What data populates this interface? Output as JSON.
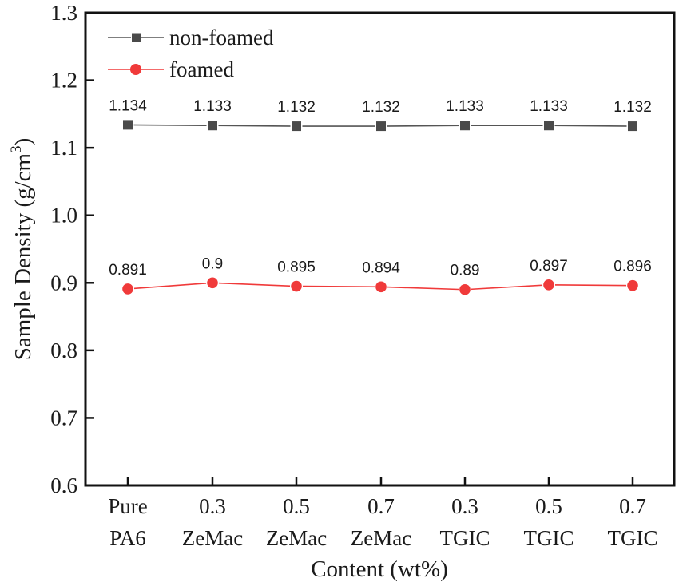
{
  "chart_data": {
    "type": "line",
    "title": "",
    "xlabel": "Content (wt%)",
    "ylabel": "Sample Density (g/cm³)",
    "ylabel_parts": {
      "main": "Sample Density (g/cm",
      "sup": "3",
      "end": ")"
    },
    "ylim": [
      0.6,
      1.3
    ],
    "yticks": [
      "0.6",
      "0.7",
      "0.8",
      "0.9",
      "1.0",
      "1.1",
      "1.2",
      "1.3"
    ],
    "categories": [
      [
        "Pure",
        "PA6"
      ],
      [
        "0.3",
        "ZeMac"
      ],
      [
        "0.5",
        "ZeMac"
      ],
      [
        "0.7",
        "ZeMac"
      ],
      [
        "0.3",
        "TGIC"
      ],
      [
        "0.5",
        "TGIC"
      ],
      [
        "0.7",
        "TGIC"
      ]
    ],
    "series": [
      {
        "name": "non-foamed",
        "marker": "square",
        "color": "#4a4a4a",
        "line_color": "#555555",
        "values": [
          1.134,
          1.133,
          1.132,
          1.132,
          1.133,
          1.133,
          1.132
        ],
        "labels": [
          "1.134",
          "1.133",
          "1.132",
          "1.132",
          "1.133",
          "1.133",
          "1.132"
        ]
      },
      {
        "name": "foamed",
        "marker": "circle",
        "color": "#f03a3a",
        "line_color": "#f03a3a",
        "values": [
          0.891,
          0.9,
          0.895,
          0.894,
          0.89,
          0.897,
          0.896
        ],
        "labels": [
          "0.891",
          "0.9",
          "0.895",
          "0.894",
          "0.89",
          "0.897",
          "0.896"
        ]
      }
    ],
    "legend": {
      "position": "upper-left",
      "entries": [
        "non-foamed",
        "foamed"
      ]
    },
    "grid": false
  }
}
